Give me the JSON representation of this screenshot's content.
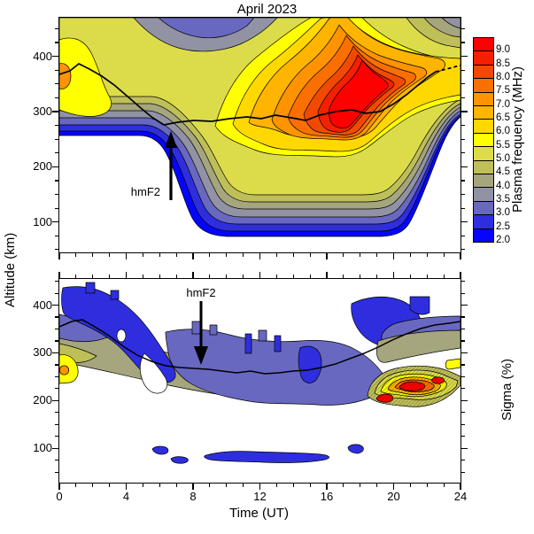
{
  "title": "April 2023",
  "axes": {
    "x": {
      "label": "Time (UT)",
      "ticks": [
        0,
        4,
        8,
        12,
        16,
        20,
        24
      ],
      "minor_step": 1,
      "range": [
        0,
        24
      ]
    },
    "y": {
      "label": "Altitude (km)",
      "ticks": [
        400,
        300,
        200,
        100
      ],
      "minor_step": 25,
      "top_range": [
        45,
        470
      ],
      "bottom_range": [
        28,
        455
      ]
    }
  },
  "colorbar": {
    "title": "Plasma frequency (MHz)",
    "labels": [
      "9.0",
      "8.5",
      "8.0",
      "7.5",
      "7.0",
      "6.5",
      "6.0",
      "5.5",
      "5.0",
      "4.5",
      "4.0",
      "3.5",
      "3.0",
      "2.5",
      "2.0"
    ],
    "colors": [
      "#ff0000",
      "#f52000",
      "#f14a00",
      "#f97000",
      "#ff9300",
      "#ffb400",
      "#ffd800",
      "#ffff00",
      "#dcdc4a",
      "#bfbf5a",
      "#a5a57e",
      "#9292a5",
      "#6868c1",
      "#2e2edf",
      "#0505ff"
    ]
  },
  "right_axis_bottom": {
    "label": "Sigma (%)"
  },
  "annotations": {
    "hmf2_top": "hmF2",
    "hmf2_bottom": "hmF2"
  },
  "chart_data": [
    {
      "panel": "top",
      "type": "heatmap",
      "title": "April 2023",
      "x": {
        "label": "Time (UT)",
        "range": [
          0,
          24
        ],
        "ticks": [
          0,
          4,
          8,
          12,
          16,
          20,
          24
        ]
      },
      "y": {
        "label": "Altitude (km)",
        "range": [
          45,
          470
        ],
        "ticks": [
          400,
          300,
          200,
          100
        ]
      },
      "z": {
        "label": "Plasma frequency (MHz)",
        "levels": [
          2.0,
          2.5,
          3.0,
          3.5,
          4.0,
          4.5,
          5.0,
          5.5,
          6.0,
          6.5,
          7.0,
          7.5,
          8.0,
          8.5,
          9.0
        ]
      },
      "legend_position": "right-colorbar",
      "grid": false,
      "hmF2_line_time_altitude": [
        [
          0,
          365
        ],
        [
          1,
          372
        ],
        [
          2,
          352
        ],
        [
          3,
          338
        ],
        [
          4,
          325
        ],
        [
          5,
          308
        ],
        [
          6,
          288
        ],
        [
          7,
          282
        ],
        [
          8,
          292
        ],
        [
          9,
          296
        ],
        [
          10,
          298
        ],
        [
          11,
          295
        ],
        [
          12,
          300
        ],
        [
          13,
          296
        ],
        [
          14,
          303
        ],
        [
          15,
          300
        ],
        [
          16,
          306
        ],
        [
          17,
          303
        ],
        [
          18,
          315
        ],
        [
          19,
          328
        ],
        [
          20,
          342
        ],
        [
          21,
          354
        ],
        [
          22,
          363
        ],
        [
          23,
          368
        ],
        [
          24,
          372
        ]
      ],
      "annotation": {
        "text": "hmF2",
        "arrow": "up",
        "points_at_time_ut": 6.7,
        "points_at_altitude_km": 290
      },
      "features": [
        "maximum plasma frequency >9 MHz between ~13-18 UT at 280-400 km (red core)",
        "secondary enhancement 6.5-7.5 MHz at 0-2 UT near 300-420 km with small >7 MHz spot at 0 UT ~300 km",
        "low-value pocket 3.0-3.5 MHz near 430-465 km around 04-08 UT (gray-blue patch at top)",
        "blue low-frequency layer 2.0-3.0 MHz near 100-200 km between ~07 and ~19.5 UT",
        "white = below 2 MHz / no echo: below ~250 km before 07 UT and after ~19.5 UT",
        "values decrease toward 3-4 MHz at top-right corner (450+ km, 20-24 UT)"
      ]
    },
    {
      "panel": "bottom",
      "type": "heatmap",
      "title": "",
      "x": {
        "label": "Time (UT)",
        "range": [
          0,
          24
        ],
        "ticks": [
          0,
          4,
          8,
          12,
          16,
          20,
          24
        ]
      },
      "y": {
        "label": "Altitude (km)",
        "range": [
          28,
          455
        ],
        "ticks": [
          400,
          300,
          200,
          100
        ]
      },
      "z": {
        "label": "Sigma (%)",
        "levels": [
          2.0,
          2.5,
          3.0,
          3.5,
          4.0,
          4.5,
          5.0,
          5.5,
          6.0,
          6.5,
          7.0,
          7.5,
          8.0,
          8.5,
          9.0
        ]
      },
      "grid": false,
      "hmF2_line_time_altitude": [
        [
          0,
          355
        ],
        [
          1,
          368
        ],
        [
          2,
          362
        ],
        [
          3,
          340
        ],
        [
          4,
          318
        ],
        [
          5,
          295
        ],
        [
          6,
          280
        ],
        [
          7,
          272
        ],
        [
          8,
          268
        ],
        [
          9,
          266
        ],
        [
          10,
          265
        ],
        [
          11,
          262
        ],
        [
          12,
          258
        ],
        [
          13,
          260
        ],
        [
          14,
          262
        ],
        [
          15,
          264
        ],
        [
          16,
          270
        ],
        [
          17,
          280
        ],
        [
          18,
          295
        ],
        [
          19,
          315
        ],
        [
          20,
          335
        ],
        [
          21,
          350
        ],
        [
          22,
          358
        ],
        [
          23,
          362
        ],
        [
          24,
          366
        ]
      ],
      "annotation": {
        "text": "hmF2",
        "arrow": "down",
        "points_at_time_ut": 8.5,
        "points_at_altitude_km": 270
      },
      "features": [
        "patchy sigma of 2-3 % (blue) in a diagonal band from ~430 km at 0 UT down to ~250 km at 6-8 UT",
        "broad 2.5-3.5 % (gray-blue) region 180-350 km between ~08 and ~19 UT with olive 4-4.5 % band beneath",
        "enhanced sigma pocket 5-7 % (yellow-orange) at 0-1 UT near 260-310 km at the left edge",
        "strong localized enhancement >9 % (red, hatched dense contours) at 18-21 UT near 190-260 km",
        "yellow band ~5-6 % reaching the right edge near 290-310 km at 22-24 UT",
        "isolated 2-2.5 % blobs near 100-120 km between ~05 and ~17 UT",
        "white = below lowest contour / no data"
      ]
    }
  ]
}
